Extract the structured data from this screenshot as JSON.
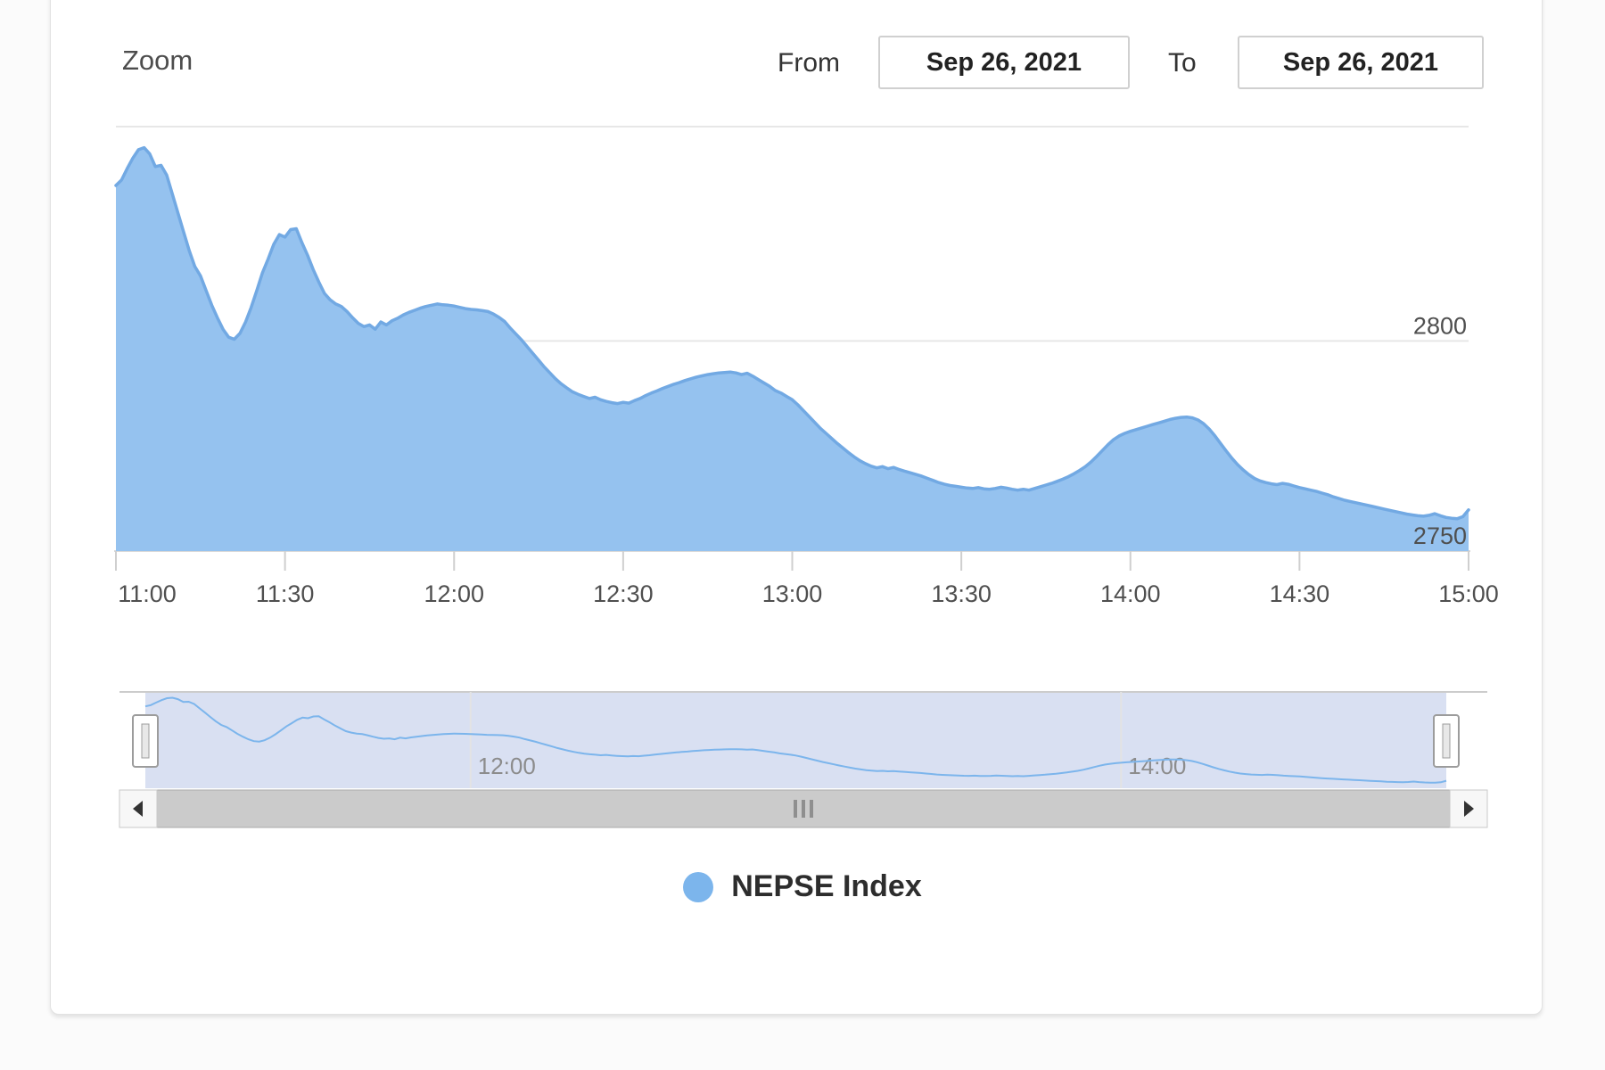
{
  "header": {
    "zoom_label": "Zoom",
    "from_label": "From",
    "from_value": "Sep 26, 2021",
    "to_label": "To",
    "to_value": "Sep 26, 2021"
  },
  "legend": {
    "label": "NEPSE Index",
    "marker_color": "#7cb5ec"
  },
  "chart_data": {
    "type": "area",
    "title": "",
    "xlabel": "",
    "ylabel": "",
    "x_ticks": [
      "11:00",
      "11:30",
      "12:00",
      "12:30",
      "13:00",
      "13:30",
      "14:00",
      "14:30",
      "15:00"
    ],
    "y_axis": {
      "min": 2750,
      "max": 2851,
      "grid": true,
      "labels_inside_right": true,
      "ticks": [
        {
          "label": "2800",
          "value": 2800
        },
        {
          "label": "2750",
          "value": 2750
        }
      ]
    },
    "series": [
      {
        "name": "NEPSE Index",
        "color": "#7cb5ec",
        "line_color": "#72a9e3",
        "fill_color": "#95c2ef",
        "start_time": "11:00",
        "end_time": "15:00",
        "interval_minutes": 1,
        "values": [
          2837,
          2838.3,
          2841,
          2843.5,
          2845.5,
          2846,
          2844.5,
          2841.5,
          2841.8,
          2839.5,
          2835,
          2830.5,
          2826,
          2821.5,
          2817.7,
          2815.5,
          2812,
          2808.5,
          2805.5,
          2802.8,
          2800.9,
          2800.4,
          2801.8,
          2804.5,
          2808,
          2812,
          2816.2,
          2819.5,
          2823,
          2825.3,
          2824.7,
          2826.5,
          2826.7,
          2823.4,
          2820.4,
          2817,
          2814,
          2811.3,
          2809.8,
          2808.8,
          2808.2,
          2807,
          2805.5,
          2804.2,
          2803.4,
          2803.8,
          2802.8,
          2804.5,
          2803.8,
          2804.8,
          2805.4,
          2806.2,
          2806.8,
          2807.3,
          2807.8,
          2808.2,
          2808.5,
          2808.8,
          2808.6,
          2808.5,
          2808.3,
          2808,
          2807.7,
          2807.5,
          2807.4,
          2807.2,
          2807,
          2806.4,
          2805.6,
          2804.6,
          2803,
          2801.6,
          2800.2,
          2798.6,
          2797,
          2795.4,
          2793.8,
          2792.4,
          2791,
          2789.8,
          2788.8,
          2787.9,
          2787.3,
          2786.8,
          2786.3,
          2786.6,
          2786,
          2785.6,
          2785.3,
          2785.1,
          2785.4,
          2785.2,
          2785.8,
          2786.3,
          2787,
          2787.6,
          2788.1,
          2788.7,
          2789.2,
          2789.7,
          2790.1,
          2790.6,
          2791,
          2791.4,
          2791.7,
          2792,
          2792.2,
          2792.4,
          2792.5,
          2792.6,
          2792.4,
          2792,
          2792.3,
          2791.6,
          2790.8,
          2790,
          2789.2,
          2788.2,
          2787.6,
          2786.8,
          2786,
          2784.8,
          2783.4,
          2782,
          2780.6,
          2779.2,
          2778,
          2776.8,
          2775.6,
          2774.5,
          2773.4,
          2772.4,
          2771.5,
          2770.8,
          2770.2,
          2769.8,
          2770.1,
          2769.6,
          2769.9,
          2769.4,
          2769,
          2768.6,
          2768.2,
          2767.8,
          2767.3,
          2766.8,
          2766.3,
          2765.9,
          2765.6,
          2765.4,
          2765.2,
          2765,
          2764.9,
          2765.1,
          2764.8,
          2764.7,
          2764.9,
          2765.2,
          2765,
          2764.7,
          2764.5,
          2764.7,
          2764.5,
          2764.9,
          2765.3,
          2765.7,
          2766.1,
          2766.6,
          2767.1,
          2767.7,
          2768.4,
          2769.2,
          2770.1,
          2771.2,
          2772.5,
          2773.9,
          2775.3,
          2776.5,
          2777.4,
          2778,
          2778.5,
          2778.9,
          2779.3,
          2779.7,
          2780.1,
          2780.5,
          2780.9,
          2781.3,
          2781.6,
          2781.8,
          2781.9,
          2781.7,
          2781.2,
          2780.3,
          2779,
          2777.4,
          2775.6,
          2773.8,
          2772.1,
          2770.6,
          2769.3,
          2768.2,
          2767.3,
          2766.7,
          2766.3,
          2766,
          2765.8,
          2766.1,
          2765.9,
          2765.5,
          2765.1,
          2764.8,
          2764.5,
          2764.2,
          2763.8,
          2763.4,
          2762.9,
          2762.5,
          2762.1,
          2761.8,
          2761.5,
          2761.2,
          2760.9,
          2760.6,
          2760.3,
          2760,
          2759.7,
          2759.4,
          2759.1,
          2758.8,
          2758.6,
          2758.4,
          2758.3,
          2758.5,
          2758.9,
          2758.4,
          2758,
          2757.8,
          2757.7,
          2758.2,
          2759.8
        ]
      }
    ],
    "navigator": {
      "x_labels": [
        {
          "label": "12:00",
          "minute": 60
        },
        {
          "label": "14:00",
          "minute": 180
        }
      ],
      "mask_color": "#d9e0f2",
      "outline_color": "#cccccc",
      "line_color": "#7cb5ec"
    },
    "grid_color": "#e7e7e7",
    "axis_line_color": "#d9d9d9",
    "tick_color": "#cfcfcf",
    "axis_label_color": "#4f4f4f",
    "navigator_label_color": "#8c8c8c"
  }
}
